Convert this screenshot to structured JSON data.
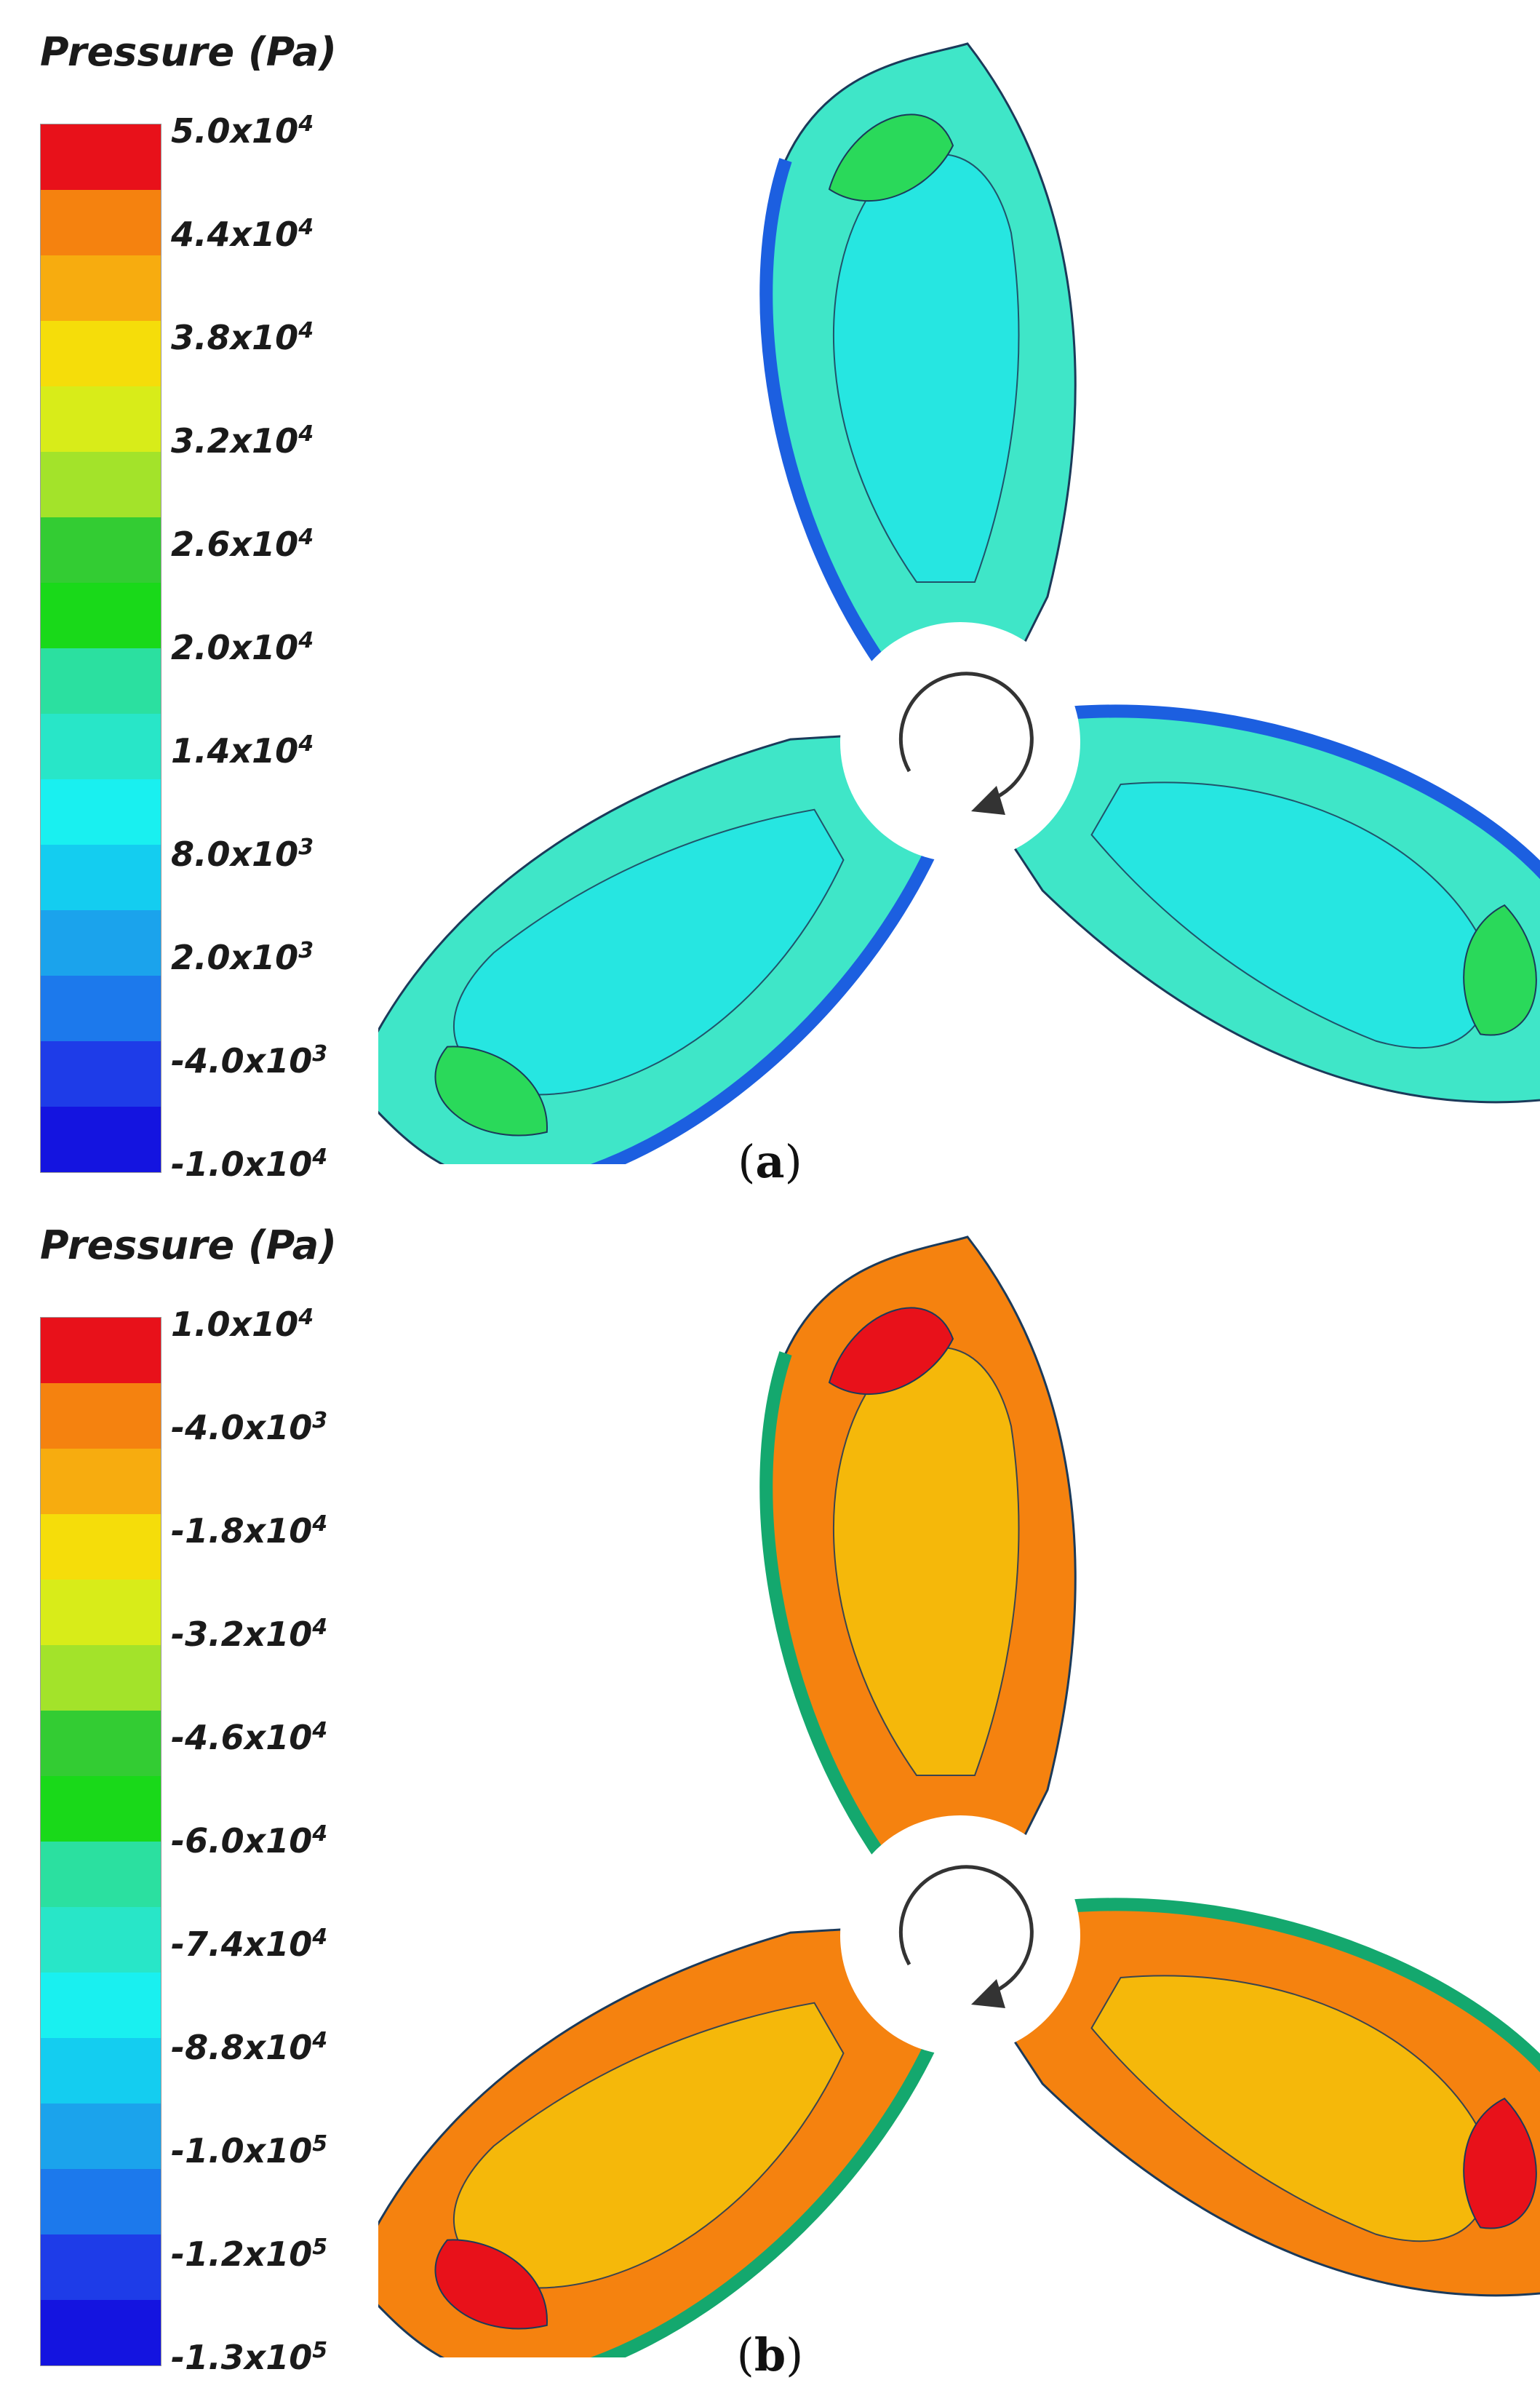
{
  "panels": [
    {
      "id": "a",
      "caption_letter": "a",
      "legend_title": "Pressure (Pa)",
      "legend_colors": [
        "#e8111a",
        "#f5820f",
        "#f7ac0f",
        "#f5dd0a",
        "#d8ec19",
        "#a3e32a",
        "#33cc33",
        "#19d919",
        "#2be0a0",
        "#28e6c8",
        "#19f0f0",
        "#14cdf0",
        "#1ba3ec",
        "#1c79ec",
        "#1e3ce8",
        "#1414e0"
      ],
      "legend_labels": [
        {
          "mantissa": "5.0x10",
          "exp": "4"
        },
        {
          "mantissa": "4.4x10",
          "exp": "4"
        },
        {
          "mantissa": "3.8x10",
          "exp": "4"
        },
        {
          "mantissa": "3.2x10",
          "exp": "4"
        },
        {
          "mantissa": "2.6x10",
          "exp": "4"
        },
        {
          "mantissa": "2.0x10",
          "exp": "4"
        },
        {
          "mantissa": "1.4x10",
          "exp": "4"
        },
        {
          "mantissa": "8.0x10",
          "exp": "3"
        },
        {
          "mantissa": "2.0x10",
          "exp": "3"
        },
        {
          "mantissa": "-4.0x10",
          "exp": "3"
        },
        {
          "mantissa": "-1.0x10",
          "exp": "4"
        }
      ],
      "blade_base_color": "#3fe6c8",
      "blade_mid_color": "#22e6e6",
      "blade_accent_color": "#2ad95a"
    },
    {
      "id": "b",
      "caption_letter": "b",
      "legend_title": "Pressure (Pa)",
      "legend_colors": [
        "#e8111a",
        "#f5820f",
        "#f7ac0f",
        "#f5dd0a",
        "#d8ec19",
        "#a3e32a",
        "#33cc33",
        "#19d919",
        "#2be0a0",
        "#28e6c8",
        "#19f0f0",
        "#14cdf0",
        "#1ba3ec",
        "#1c79ec",
        "#1e3ce8",
        "#1414e0"
      ],
      "legend_labels": [
        {
          "mantissa": "1.0x10",
          "exp": "4"
        },
        {
          "mantissa": "-4.0x10",
          "exp": "3"
        },
        {
          "mantissa": "-1.8x10",
          "exp": "4"
        },
        {
          "mantissa": "-3.2x10",
          "exp": "4"
        },
        {
          "mantissa": "-4.6x10",
          "exp": "4"
        },
        {
          "mantissa": "-6.0x10",
          "exp": "4"
        },
        {
          "mantissa": "-7.4x10",
          "exp": "4"
        },
        {
          "mantissa": "-8.8x10",
          "exp": "4"
        },
        {
          "mantissa": "-1.0x10",
          "exp": "5"
        },
        {
          "mantissa": "-1.2x10",
          "exp": "5"
        },
        {
          "mantissa": "-1.3x10",
          "exp": "5"
        }
      ],
      "blade_base_color": "#f5820f",
      "blade_mid_color": "#f5c20a",
      "blade_accent_color": "#e8111a"
    }
  ],
  "rotation_arrow_icon": "clockwise-arrow-icon"
}
